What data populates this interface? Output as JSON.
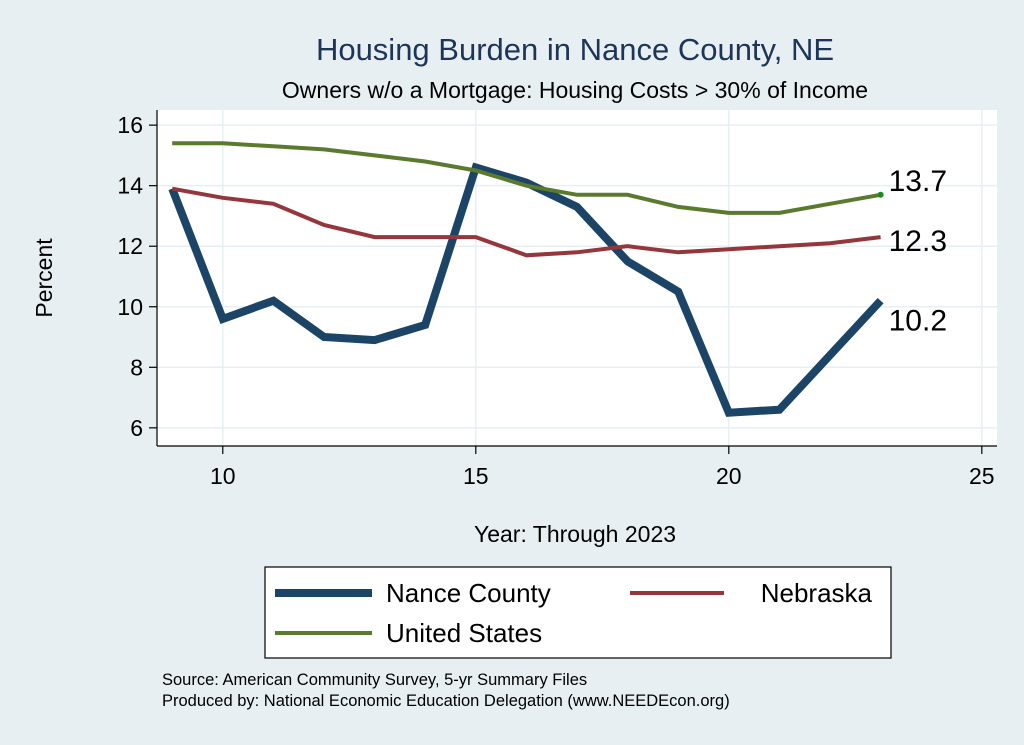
{
  "chart_data": {
    "type": "line",
    "title": "Housing Burden in Nance County, NE",
    "subtitle": "Owners w/o a Mortgage: Housing Costs > 30% of Income",
    "xlabel": "Year: Through 2023",
    "ylabel": "Percent",
    "xlim": [
      8.7,
      25.3
    ],
    "ylim": [
      5.4,
      16.5
    ],
    "xticks": [
      10,
      15,
      20,
      25
    ],
    "yticks": [
      6,
      8,
      10,
      12,
      14,
      16
    ],
    "grid": true,
    "x": [
      9,
      10,
      11,
      12,
      13,
      14,
      15,
      16,
      17,
      18,
      19,
      20,
      21,
      22,
      23
    ],
    "series": [
      {
        "name": "Nance County",
        "color": "#1b4466",
        "values": [
          13.9,
          9.6,
          10.2,
          9.0,
          8.9,
          9.4,
          14.6,
          14.1,
          13.3,
          11.5,
          10.5,
          6.5,
          6.6,
          8.4,
          10.2
        ],
        "end_label": "10.2"
      },
      {
        "name": "Nebraska",
        "color": "#94363b",
        "values": [
          13.9,
          13.6,
          13.4,
          12.7,
          12.3,
          12.3,
          12.3,
          11.7,
          11.8,
          12.0,
          11.8,
          11.9,
          12.0,
          12.1,
          12.3
        ],
        "end_label": "12.3"
      },
      {
        "name": "United States",
        "color": "#5a7a2e",
        "values": [
          15.4,
          15.4,
          15.3,
          15.2,
          15.0,
          14.8,
          14.5,
          14.0,
          13.7,
          13.7,
          13.3,
          13.1,
          13.1,
          13.4,
          13.7
        ],
        "end_label": "13.7"
      }
    ],
    "legend": {
      "position": "bottom",
      "entries": [
        "Nance County",
        "Nebraska",
        "United States"
      ]
    },
    "notes": [
      "Source: American Community Survey, 5-yr Summary Files",
      "Produced by: National Economic Education Delegation (www.NEEDEcon.org)"
    ]
  }
}
